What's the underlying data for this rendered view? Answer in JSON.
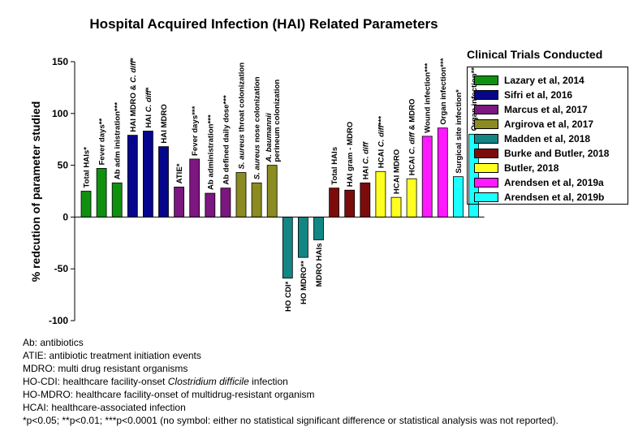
{
  "chart_data": {
    "type": "bar",
    "title": "Hospital Acquired Infection (HAI) Related Parameters",
    "ylabel": "% redcution of parameter studied",
    "xlabel": "",
    "ylim": [
      -100,
      150
    ],
    "yticks": [
      -100,
      -50,
      0,
      50,
      100,
      150
    ],
    "grid": false,
    "legend_title": "Clinical Trials Conducted",
    "legend_position": "right",
    "series": [
      {
        "name": "Lazary et al, 2014",
        "color": "#10900f"
      },
      {
        "name": "Sifri et al, 2016",
        "color": "#06068d"
      },
      {
        "name": "Marcus et al, 2017",
        "color": "#7c1680"
      },
      {
        "name": "Argirova et al, 2017",
        "color": "#8c8b21"
      },
      {
        "name": "Madden et al, 2018",
        "color": "#138585"
      },
      {
        "name": "Burke and Butler, 2018",
        "color": "#7c0c0c"
      },
      {
        "name": "Butler, 2018",
        "color": "#ffff22"
      },
      {
        "name": "Arendsen et al, 2019a",
        "color": "#ff19ff"
      },
      {
        "name": "Arendsen et al, 2019b",
        "color": "#1affff"
      }
    ],
    "bars": [
      {
        "label": "Total HAIs*",
        "value": 25,
        "series": 0
      },
      {
        "label": "Fever days**",
        "value": 47,
        "series": 0
      },
      {
        "label": "Ab adm inistration***",
        "value": 33,
        "series": 0
      },
      {
        "label": "HAI MDRO & C. diff*",
        "value": 79,
        "series": 1
      },
      {
        "label": "HAI C. diff*",
        "value": 83,
        "series": 1
      },
      {
        "label": "HAI MDRO",
        "value": 68,
        "series": 1
      },
      {
        "label": "ATIE*",
        "value": 29,
        "series": 2
      },
      {
        "label": "Fever days***",
        "value": 56,
        "series": 2
      },
      {
        "label": "Ab administration***",
        "value": 23,
        "series": 2
      },
      {
        "label": "Ab defined daily dose***",
        "value": 28,
        "series": 2
      },
      {
        "label": "S. aureus throat colonization",
        "value": 43,
        "series": 3
      },
      {
        "label": "S. aureus nose colonization",
        "value": 33,
        "series": 3
      },
      {
        "label": "A. baumannii perineum colonization",
        "value": 50,
        "series": 3
      },
      {
        "label": "HO CDI*",
        "value": -59,
        "series": 4
      },
      {
        "label": "HO MDRO**",
        "value": -39,
        "series": 4
      },
      {
        "label": "MDRO HAIs",
        "value": -22,
        "series": 4
      },
      {
        "label": "Total HAIs",
        "value": 28,
        "series": 5
      },
      {
        "label": "HAI gram - MDRO",
        "value": 26,
        "series": 5
      },
      {
        "label": "HAI C. diff",
        "value": 33,
        "series": 5
      },
      {
        "label": "HCAI C. diff***",
        "value": 44,
        "series": 6
      },
      {
        "label": "HCAI MDRO",
        "value": 19,
        "series": 6
      },
      {
        "label": "HCAI C. diff & MDRO",
        "value": 37,
        "series": 6
      },
      {
        "label": "Wound infection***",
        "value": 78,
        "series": 7
      },
      {
        "label": "Organ infection***",
        "value": 86,
        "series": 7
      },
      {
        "label": "Surgical site infection*",
        "value": 39,
        "series": 8
      },
      {
        "label": "Organ infection**",
        "value": 80,
        "series": 8
      }
    ]
  },
  "notes": [
    "Ab: antibiotics",
    "ATIE: antibiotic treatment initiation events",
    "MDRO: multi drug resistant organisms",
    "HO-CDI: healthcare facility-onset Clostridium difficile infection",
    "HO-MDRO: healthcare facility-onset of multidrug-resistant organism",
    "HCAI: healthcare-associated infection",
    "*p<0.05; **p<0.01; ***p<0.0001 (no symbol: either no statistical significant difference or statistical analysis was not reported)."
  ]
}
